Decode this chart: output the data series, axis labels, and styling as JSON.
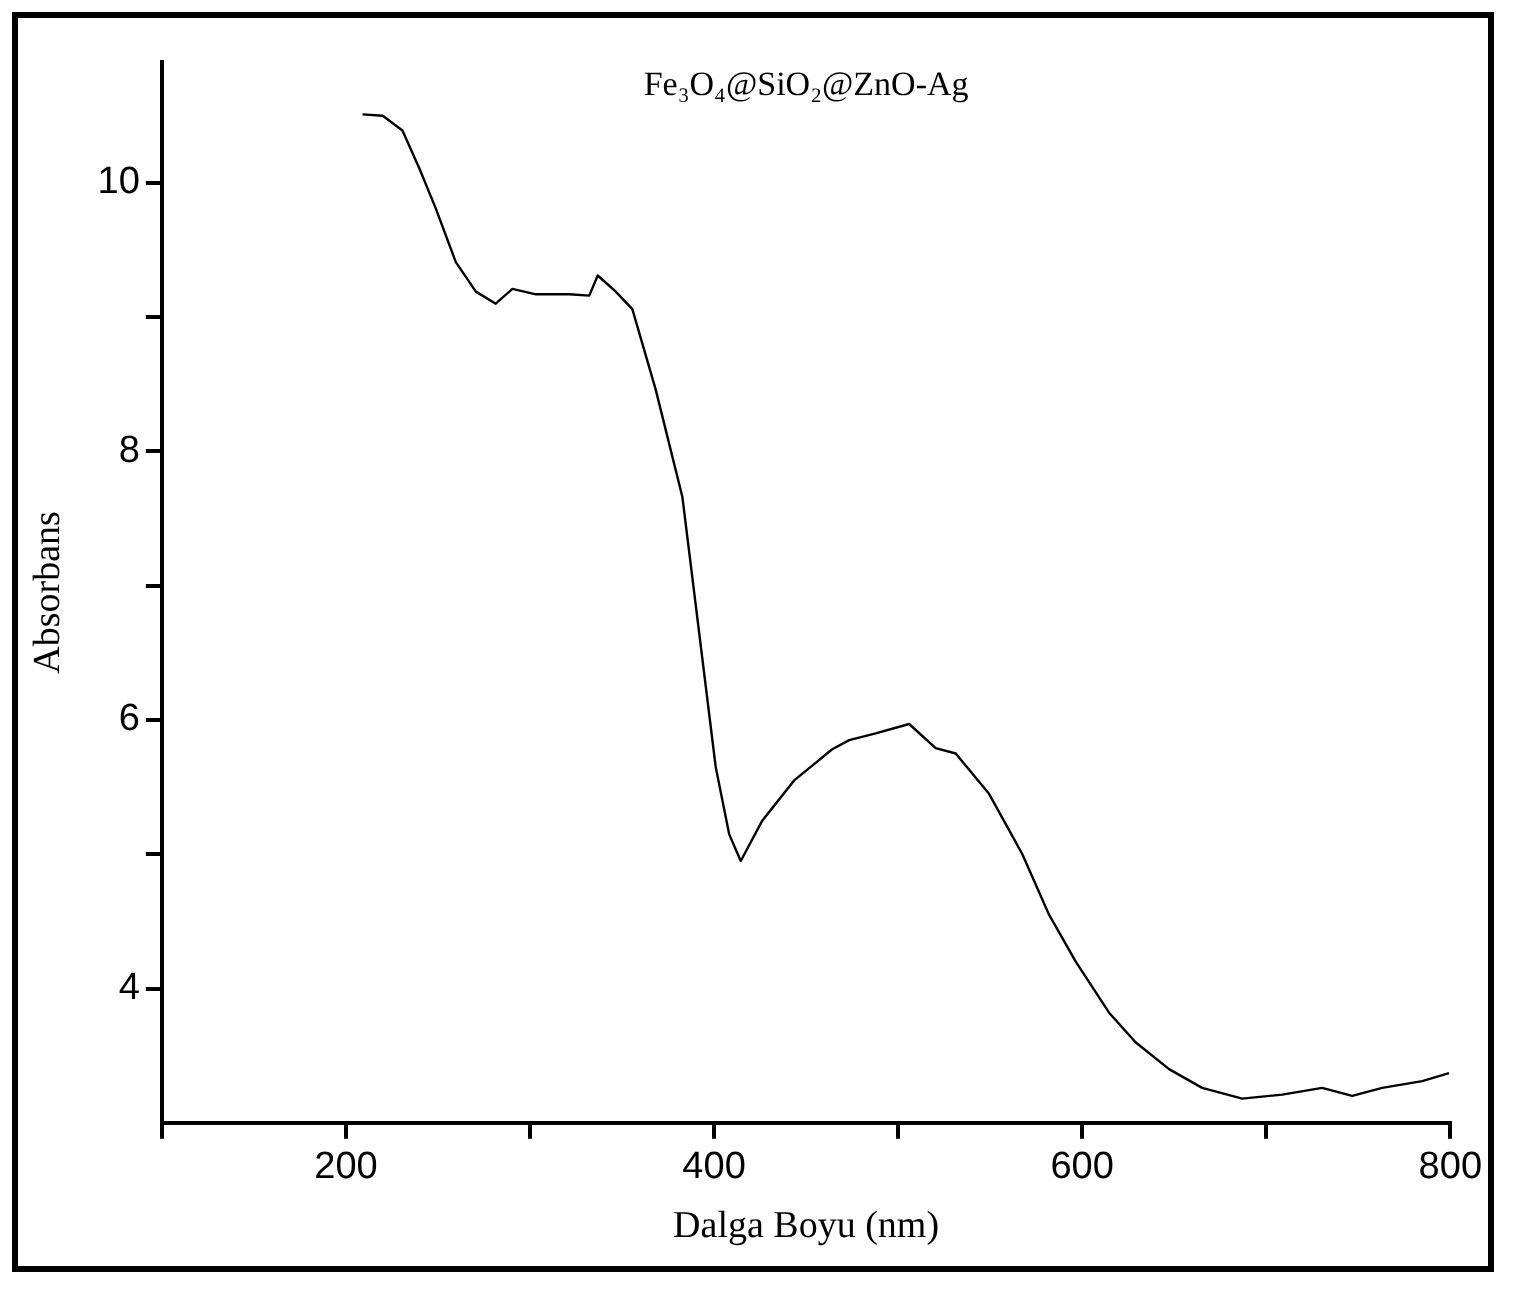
{
  "chart_data": {
    "type": "line",
    "title": "Fe₃O₄@SiO₂@ZnO-Ag",
    "xlabel": "Dalga Boyu (nm)",
    "ylabel": "Absorbans",
    "xlim": [
      100,
      800
    ],
    "ylim": [
      3,
      10.9
    ],
    "xticks": [
      {
        "value": 100,
        "label": null
      },
      200,
      {
        "value": 300,
        "label": null
      },
      400,
      {
        "value": 500,
        "label": null
      },
      600,
      {
        "value": 700,
        "label": null
      },
      800
    ],
    "yticks": [
      4,
      {
        "value": 5,
        "label": null
      },
      6,
      {
        "value": 7,
        "label": null
      },
      8,
      {
        "value": 9,
        "label": null
      },
      10
    ],
    "grid": false,
    "legend": false,
    "marker": "none",
    "line_style": "solid",
    "series": [
      {
        "color": "#000000",
        "x": [
          209,
          220,
          230.7,
          239.8,
          248.8,
          259.7,
          270.6,
          281.4,
          290.4,
          303.2,
          321.3,
          332.2,
          336.8,
          346.6,
          355.6,
          368.3,
          382.8,
          391.9,
          400.9,
          408.2,
          414.5,
          426.2,
          443.5,
          455.2,
          464,
          473.4,
          487.8,
          506,
          520.4,
          531.3,
          549.4,
          567.5,
          582,
          596.5,
          614.6,
          629,
          647.2,
          665.2,
          687,
          708.7,
          730.4,
          746.7,
          763,
          784.7,
          799.3
        ],
        "values": [
          10.51,
          10.5,
          10.39,
          10.11,
          9.81,
          9.41,
          9.19,
          9.1,
          9.21,
          9.17,
          9.17,
          9.16,
          9.31,
          9.19,
          9.06,
          8.46,
          7.66,
          6.65,
          5.65,
          5.15,
          4.95,
          5.25,
          5.55,
          5.68,
          5.78,
          5.85,
          5.9,
          5.97,
          5.79,
          5.75,
          5.45,
          5.0,
          4.55,
          4.2,
          3.82,
          3.6,
          3.4,
          3.26,
          3.18,
          3.21,
          3.26,
          3.2,
          3.26,
          3.31,
          3.37
        ]
      }
    ]
  }
}
